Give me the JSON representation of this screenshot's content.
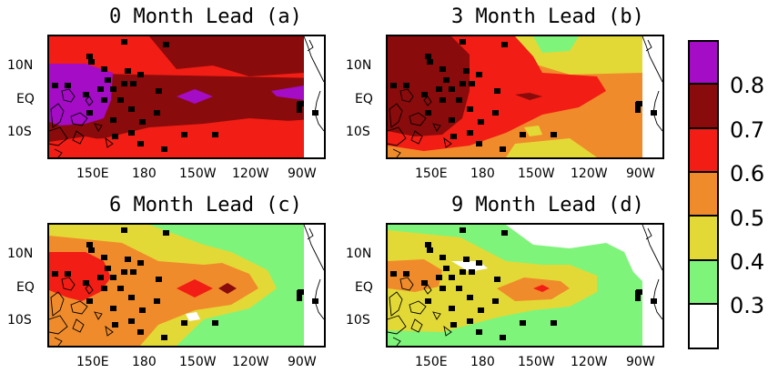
{
  "colors": {
    "white": "#ffffff",
    "c3": "#7ef47a",
    "c4": "#e3d936",
    "c5": "#f08b2b",
    "c6": "#f21d14",
    "c7": "#8a0b0b",
    "c8": "#a40cc6"
  },
  "colorbar": {
    "levels": [
      "0.8",
      "0.7",
      "0.6",
      "0.5",
      "0.4",
      "0.3"
    ]
  },
  "axes": {
    "lat_labels": [
      "10N",
      "EQ",
      "10S"
    ],
    "lon_labels": [
      "150E",
      "180",
      "150W",
      "120W",
      "90W"
    ]
  },
  "panels": [
    {
      "title": "0 Month Lead (a)"
    },
    {
      "title": "3 Month Lead (b)"
    },
    {
      "title": "6 Month Lead (c)"
    },
    {
      "title": "9 Month Lead (d)"
    }
  ]
}
